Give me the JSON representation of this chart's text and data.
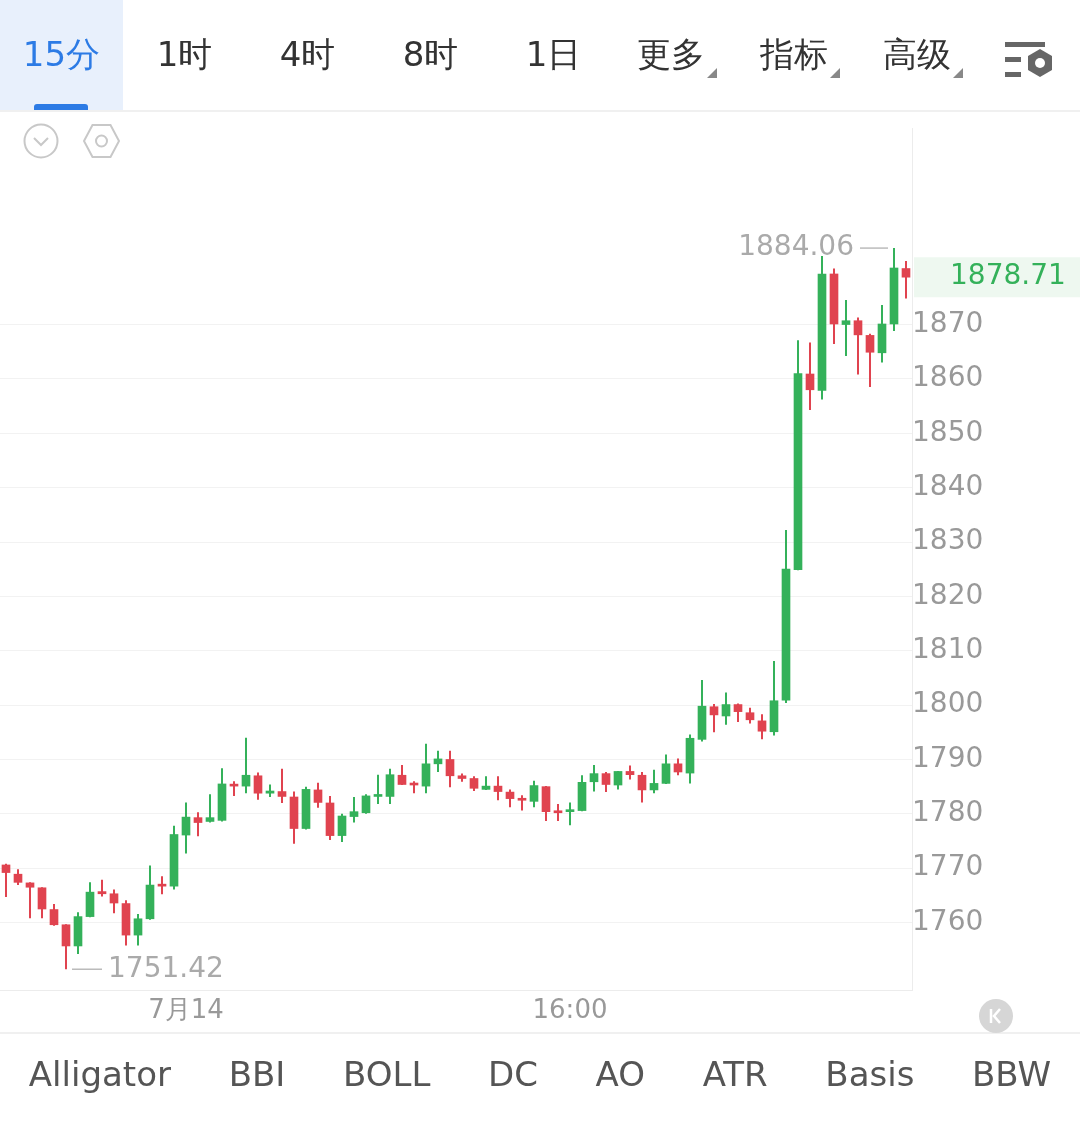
{
  "chart_data": {
    "type": "candlestick",
    "categories": [
      null,
      null,
      null,
      null,
      null,
      null,
      null,
      null,
      null,
      null,
      null,
      null,
      null,
      null,
      null,
      "7月14",
      null,
      null,
      null,
      null,
      null,
      null,
      null,
      null,
      null,
      null,
      null,
      null,
      null,
      null,
      null,
      null,
      null,
      null,
      null,
      null,
      null,
      null,
      null,
      null,
      null,
      null,
      null,
      null,
      null,
      null,
      null,
      "16:00",
      null,
      null,
      null,
      null,
      null,
      null,
      null,
      null,
      null,
      null,
      null,
      null,
      null,
      null,
      null,
      null,
      null,
      null,
      null,
      null,
      null,
      null,
      null,
      null,
      null,
      null,
      null,
      null
    ],
    "ohlc": [
      [
        1770.6,
        1770.8,
        1764.7,
        1769.2
      ],
      [
        1768.9,
        1769.8,
        1766.9,
        1767.4
      ],
      [
        1767.3,
        1767.4,
        1760.8,
        1766.5
      ],
      [
        1766.4,
        1766.5,
        1760.8,
        1762.5
      ],
      [
        1762.4,
        1763.4,
        1759.4,
        1759.6
      ],
      [
        1759.6,
        1759.7,
        1751.42,
        1755.7
      ],
      [
        1755.7,
        1761.9,
        1754.2,
        1761.1
      ],
      [
        1761.1,
        1767.4,
        1761.0,
        1765.6
      ],
      [
        1765.7,
        1767.9,
        1764.8,
        1765.3
      ],
      [
        1765.3,
        1766.1,
        1761.7,
        1763.6
      ],
      [
        1763.5,
        1764.1,
        1755.8,
        1757.7
      ],
      [
        1757.7,
        1761.6,
        1755.8,
        1760.7
      ],
      [
        1760.7,
        1770.5,
        1760.5,
        1766.9
      ],
      [
        1767.0,
        1768.5,
        1765.2,
        1766.7
      ],
      [
        1766.7,
        1777.8,
        1766.1,
        1776.2
      ],
      [
        1776.1,
        1782.1,
        1772.7,
        1779.4
      ],
      [
        1779.3,
        1780.3,
        1775.9,
        1778.4
      ],
      [
        1778.6,
        1783.6,
        1778.4,
        1779.3
      ],
      [
        1778.8,
        1788.4,
        1778.6,
        1785.5
      ],
      [
        1785.4,
        1786.0,
        1783.3,
        1785.1
      ],
      [
        1785.1,
        1794.0,
        1783.8,
        1787.1
      ],
      [
        1787.0,
        1787.6,
        1782.6,
        1783.8
      ],
      [
        1783.8,
        1785.4,
        1783.1,
        1784.2
      ],
      [
        1784.1,
        1788.3,
        1782.0,
        1783.2
      ],
      [
        1783.1,
        1784.1,
        1774.5,
        1777.3
      ],
      [
        1777.3,
        1785.0,
        1777.1,
        1784.5
      ],
      [
        1784.4,
        1785.7,
        1781.1,
        1782.1
      ],
      [
        1782.0,
        1783.3,
        1775.2,
        1776.0
      ],
      [
        1776.0,
        1780.0,
        1774.8,
        1779.6
      ],
      [
        1779.5,
        1783.1,
        1778.4,
        1780.4
      ],
      [
        1780.2,
        1783.6,
        1780.0,
        1783.3
      ],
      [
        1783.2,
        1787.2,
        1781.8,
        1783.4
      ],
      [
        1783.2,
        1788.3,
        1781.8,
        1787.2
      ],
      [
        1787.1,
        1789.0,
        1785.3,
        1785.4
      ],
      [
        1785.6,
        1786.0,
        1783.8,
        1785.3
      ],
      [
        1785.1,
        1792.9,
        1783.8,
        1789.2
      ],
      [
        1789.2,
        1791.6,
        1787.7,
        1790.1
      ],
      [
        1790.0,
        1791.6,
        1784.9,
        1787.0
      ],
      [
        1787.0,
        1787.4,
        1785.9,
        1786.5
      ],
      [
        1786.5,
        1786.9,
        1784.2,
        1784.7
      ],
      [
        1784.5,
        1786.9,
        1784.4,
        1785.1
      ],
      [
        1785.1,
        1786.9,
        1782.5,
        1784.1
      ],
      [
        1784.0,
        1784.5,
        1781.2,
        1782.8
      ],
      [
        1782.8,
        1783.4,
        1780.6,
        1782.5
      ],
      [
        1782.3,
        1786.1,
        1781.2,
        1785.2
      ],
      [
        1785.0,
        1785.1,
        1778.7,
        1780.4
      ],
      [
        1780.5,
        1781.8,
        1778.7,
        1780.2
      ],
      [
        1780.4,
        1782.1,
        1777.9,
        1780.6
      ],
      [
        1780.6,
        1787.1,
        1780.5,
        1785.8
      ],
      [
        1785.9,
        1789.0,
        1784.1,
        1787.4
      ],
      [
        1787.4,
        1787.7,
        1784.0,
        1785.4
      ],
      [
        1785.3,
        1787.9,
        1784.5,
        1787.8
      ],
      [
        1787.8,
        1788.9,
        1786.3,
        1787.2
      ],
      [
        1787.1,
        1787.7,
        1782.1,
        1784.4
      ],
      [
        1784.4,
        1788.1,
        1783.8,
        1785.6
      ],
      [
        1785.6,
        1790.9,
        1785.5,
        1789.2
      ],
      [
        1789.2,
        1790.2,
        1787.1,
        1787.7
      ],
      [
        1787.5,
        1794.6,
        1785.6,
        1793.9
      ],
      [
        1793.7,
        1804.6,
        1793.3,
        1799.8
      ],
      [
        1799.7,
        1800.2,
        1795.0,
        1798.2
      ],
      [
        1798.0,
        1802.3,
        1796.4,
        1800.1
      ],
      [
        1800.1,
        1800.3,
        1796.9,
        1798.8
      ],
      [
        1798.6,
        1799.5,
        1796.6,
        1797.3
      ],
      [
        1797.1,
        1798.3,
        1793.7,
        1795.2
      ],
      [
        1795.1,
        1808.1,
        1794.4,
        1800.8
      ],
      [
        1800.9,
        1832.2,
        1800.4,
        1825.0
      ],
      [
        1824.9,
        1867.1,
        1824.8,
        1861.0
      ],
      [
        1860.9,
        1866.7,
        1854.3,
        1858.0
      ],
      [
        1857.9,
        1882.6,
        1856.2,
        1879.3
      ],
      [
        1879.3,
        1880.3,
        1866.4,
        1870.1
      ],
      [
        1870.0,
        1874.5,
        1864.2,
        1870.7
      ],
      [
        1870.7,
        1871.3,
        1860.8,
        1868.1
      ],
      [
        1868.0,
        1868.3,
        1858.5,
        1864.9
      ],
      [
        1864.8,
        1873.6,
        1863.0,
        1870.1
      ],
      [
        1870.1,
        1884.06,
        1868.8,
        1880.4
      ],
      [
        1880.3,
        1881.7,
        1874.8,
        1878.71
      ]
    ],
    "colors": [
      "#e0434f",
      "#e0434f",
      "#e0434f",
      "#e0434f",
      "#e0434f",
      "#e0434f",
      "#34b15a",
      "#34b15a",
      "#e0434f",
      "#e0434f",
      "#e0434f",
      "#34b15a",
      "#34b15a",
      "#e0434f",
      "#34b15a",
      "#34b15a",
      "#e0434f",
      "#34b15a",
      "#34b15a",
      "#e0434f",
      "#34b15a",
      "#e0434f",
      "#34b15a",
      "#e0434f",
      "#e0434f",
      "#34b15a",
      "#e0434f",
      "#e0434f",
      "#34b15a",
      "#34b15a",
      "#34b15a",
      "#34b15a",
      "#34b15a",
      "#e0434f",
      "#e0434f",
      "#34b15a",
      "#34b15a",
      "#e0434f",
      "#e0434f",
      "#e0434f",
      "#34b15a",
      "#e0434f",
      "#e0434f",
      "#e0434f",
      "#34b15a",
      "#e0434f",
      "#e0434f",
      "#34b15a",
      "#34b15a",
      "#34b15a",
      "#e0434f",
      "#34b15a",
      "#e0434f",
      "#e0434f",
      "#34b15a",
      "#34b15a",
      "#e0434f",
      "#34b15a",
      "#34b15a",
      "#e0434f",
      "#34b15a",
      "#e0434f",
      "#e0434f",
      "#e0434f",
      "#34b15a",
      "#34b15a",
      "#34b15a",
      "#e0434f",
      "#34b15a",
      "#e0434f",
      "#34b15a",
      "#e0434f",
      "#e0434f",
      "#34b15a",
      "#34b15a",
      "#e0434f"
    ],
    "ylim": [
      1747.6,
      1906
    ],
    "yticks": [
      1760,
      1770,
      1780,
      1790,
      1800,
      1810,
      1820,
      1830,
      1840,
      1850,
      1860,
      1870
    ],
    "grid": "y",
    "annotations": [
      "15分",
      "1时",
      "4时",
      "8时",
      "1日",
      "更多",
      "指标",
      "高级",
      "Alligator",
      "BBI",
      "BOLL",
      "DC",
      "AO",
      "ATR",
      "Basis",
      "BBW",
      "1884.06",
      "1751.42",
      "1878.71"
    ]
  }
}
